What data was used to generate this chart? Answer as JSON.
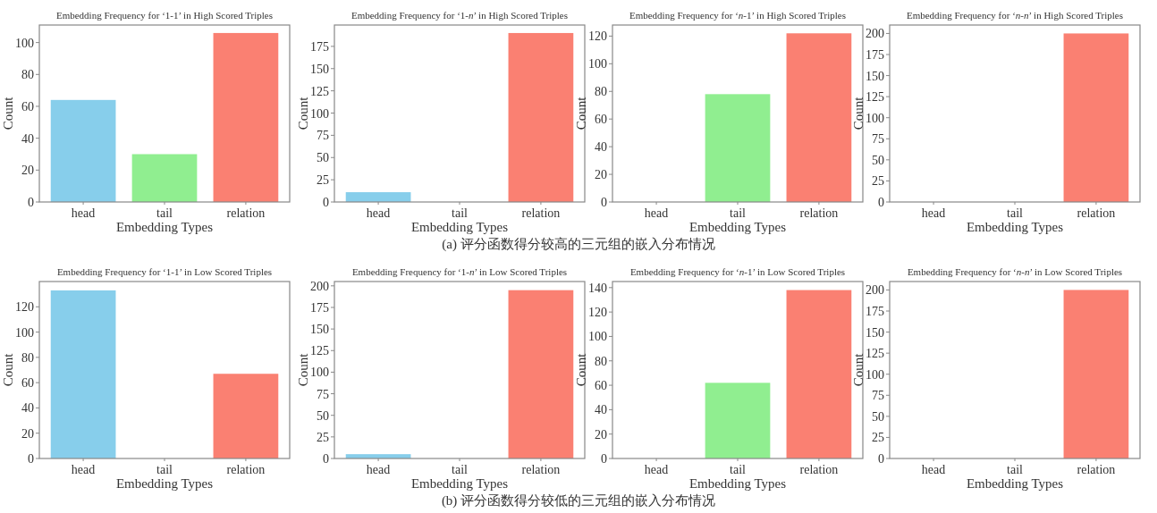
{
  "chart_data": [
    {
      "type": "bar",
      "title": "Embedding Frequency for ‘1-1’ in High Scored Triples",
      "xlabel": "Embedding Types",
      "ylabel": "Count",
      "categories": [
        "head",
        "tail",
        "relation"
      ],
      "values": [
        64,
        30,
        106
      ],
      "colors": [
        "#87ceeb",
        "#90ee90",
        "#fa8072"
      ],
      "ylim": [
        0,
        111
      ],
      "yticks": [
        0,
        20,
        40,
        60,
        80,
        100
      ],
      "annotations": [
        "(a) 评分函数得分较高的三元组的嵌入分布情况"
      ]
    },
    {
      "type": "bar",
      "title": "Embedding Frequency for ‘1-*n*’ in High Scored Triples",
      "xlabel": "Embedding Types",
      "ylabel": "Count",
      "categories": [
        "head",
        "tail",
        "relation"
      ],
      "values": [
        11,
        0,
        190
      ],
      "colors": [
        "#87ceeb",
        "#90ee90",
        "#fa8072"
      ],
      "ylim": [
        0,
        199
      ],
      "yticks": [
        0,
        25,
        50,
        75,
        100,
        125,
        150,
        175
      ]
    },
    {
      "type": "bar",
      "title": "Embedding Frequency for ‘*n*-1’ in High Scored Triples",
      "xlabel": "Embedding Types",
      "ylabel": "Count",
      "categories": [
        "head",
        "tail",
        "relation"
      ],
      "values": [
        0,
        78,
        122
      ],
      "colors": [
        "#87ceeb",
        "#90ee90",
        "#fa8072"
      ],
      "ylim": [
        0,
        128
      ],
      "yticks": [
        0,
        20,
        40,
        60,
        80,
        100,
        120
      ]
    },
    {
      "type": "bar",
      "title": "Embedding Frequency for ‘*n*-*n*’ in High Scored Triples",
      "xlabel": "Embedding Types",
      "ylabel": "Count",
      "categories": [
        "head",
        "tail",
        "relation"
      ],
      "values": [
        0,
        0,
        200
      ],
      "colors": [
        "#87ceeb",
        "#90ee90",
        "#fa8072"
      ],
      "ylim": [
        0,
        210
      ],
      "yticks": [
        0,
        25,
        50,
        75,
        100,
        125,
        150,
        175,
        200
      ]
    },
    {
      "type": "bar",
      "title": "Embedding Frequency for ‘1-1’ in Low Scored Triples",
      "xlabel": "Embedding Types",
      "ylabel": "Count",
      "categories": [
        "head",
        "tail",
        "relation"
      ],
      "values": [
        133,
        0,
        67
      ],
      "colors": [
        "#87ceeb",
        "#90ee90",
        "#fa8072"
      ],
      "ylim": [
        0,
        140
      ],
      "yticks": [
        0,
        20,
        40,
        60,
        80,
        100,
        120
      ],
      "annotations": [
        "(b) 评分函数得分较低的三元组的嵌入分布情况"
      ]
    },
    {
      "type": "bar",
      "title": "Embedding Frequency for ‘1-*n*’ in Low Scored Triples",
      "xlabel": "Embedding Types",
      "ylabel": "Count",
      "categories": [
        "head",
        "tail",
        "relation"
      ],
      "values": [
        5,
        0,
        195
      ],
      "colors": [
        "#87ceeb",
        "#90ee90",
        "#fa8072"
      ],
      "ylim": [
        0,
        205
      ],
      "yticks": [
        0,
        25,
        50,
        75,
        100,
        125,
        150,
        175,
        200
      ]
    },
    {
      "type": "bar",
      "title": "Embedding Frequency for ‘*n*-1’ in Low Scored Triples",
      "xlabel": "Embedding Types",
      "ylabel": "Count",
      "categories": [
        "head",
        "tail",
        "relation"
      ],
      "values": [
        0,
        62,
        138
      ],
      "colors": [
        "#87ceeb",
        "#90ee90",
        "#fa8072"
      ],
      "ylim": [
        0,
        145
      ],
      "yticks": [
        0,
        20,
        40,
        60,
        80,
        100,
        120,
        140
      ]
    },
    {
      "type": "bar",
      "title": "Embedding Frequency for ‘*n*-*n*’ in Low Scored Triples",
      "xlabel": "Embedding Types",
      "ylabel": "Count",
      "categories": [
        "head",
        "tail",
        "relation"
      ],
      "values": [
        0,
        0,
        200
      ],
      "colors": [
        "#87ceeb",
        "#90ee90",
        "#fa8072"
      ],
      "ylim": [
        0,
        210
      ],
      "yticks": [
        0,
        25,
        50,
        75,
        100,
        125,
        150,
        175,
        200
      ]
    }
  ]
}
